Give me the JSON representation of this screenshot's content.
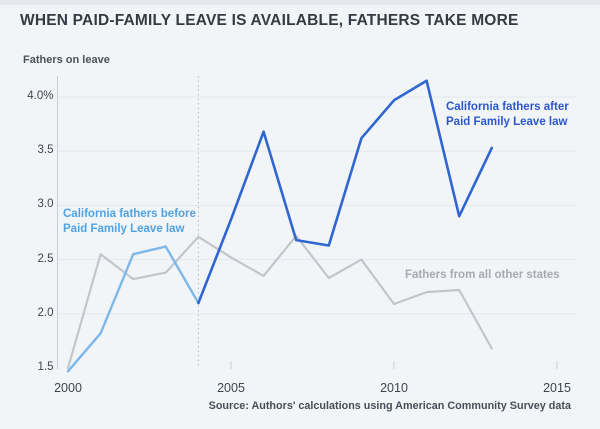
{
  "title": "WHEN PAID-FAMILY LEAVE IS AVAILABLE, FATHERS TAKE MORE",
  "y_axis_title": "Fathers on leave",
  "source_note": "Source: Authors' calculations using American Community Survey data",
  "annotations": {
    "before": {
      "line1": "California fathers before",
      "line2": "Paid Family Leave law"
    },
    "after": {
      "line1": "California fathers after",
      "line2": "Paid Family Leave law"
    },
    "others": {
      "label": "Fathers from all other states"
    }
  },
  "colors": {
    "background": "#f2f5f8",
    "title_text": "#343b42",
    "axis_line": "#c9cdd2",
    "gridline": "#e4e8ee",
    "policy_dotted_line": "#b7bcc3",
    "before_line": "#7db8e8",
    "after_line": "#3066d0",
    "others_line": "#c2c6ca",
    "before_label": "#4fa3e3",
    "after_label": "#2c57c9",
    "others_label": "#a6abb1"
  },
  "chart_data": {
    "type": "line",
    "title": "WHEN PAID-FAMILY LEAVE IS AVAILABLE, FATHERS TAKE MORE",
    "xlabel": "",
    "ylabel": "Fathers on leave (%)",
    "xlim": [
      2000,
      2015
    ],
    "ylim": [
      1.4,
      4.3
    ],
    "grid": "horizontal",
    "legend_position": "inline-annotations",
    "policy_year": 2004,
    "yticks": [
      {
        "value": 4.0,
        "label": "4.0%",
        "grid": true
      },
      {
        "value": 3.5,
        "label": "3.5",
        "grid": true
      },
      {
        "value": 3.0,
        "label": "3.0",
        "grid": true
      },
      {
        "value": 2.5,
        "label": "2.5",
        "grid": true
      },
      {
        "value": 2.0,
        "label": "2.0",
        "grid": true
      },
      {
        "value": 1.5,
        "label": "1.5",
        "grid": false
      }
    ],
    "xticks": [
      {
        "year": 2000,
        "label": "2000",
        "tick": false
      },
      {
        "year": 2005,
        "label": "2005",
        "tick": true
      },
      {
        "year": 2010,
        "label": "2010",
        "tick": true
      },
      {
        "year": 2015,
        "label": "2015",
        "tick": true
      }
    ],
    "series": [
      {
        "name": "Fathers from all other states",
        "color": "#c2c6ca",
        "width": 2.2,
        "x": [
          2000,
          2001,
          2002,
          2003,
          2004,
          2005,
          2006,
          2007,
          2008,
          2009,
          2010,
          2011,
          2012,
          2013
        ],
        "values": [
          1.5,
          2.55,
          2.32,
          2.38,
          2.71,
          2.52,
          2.35,
          2.72,
          2.33,
          2.5,
          2.09,
          2.2,
          2.22,
          1.68
        ]
      },
      {
        "name": "California fathers before Paid Family Leave law",
        "color": "#7db8e8",
        "width": 2.4,
        "x": [
          2000,
          2001,
          2002,
          2003,
          2004
        ],
        "values": [
          1.47,
          1.82,
          2.55,
          2.62,
          2.1
        ]
      },
      {
        "name": "California fathers after Paid Family Leave law",
        "color": "#3066d0",
        "width": 2.6,
        "x": [
          2004,
          2005,
          2006,
          2007,
          2008,
          2009,
          2010,
          2011,
          2012,
          2013
        ],
        "values": [
          2.1,
          2.87,
          3.68,
          2.68,
          2.63,
          3.62,
          3.97,
          4.15,
          2.9,
          3.53
        ]
      }
    ]
  }
}
